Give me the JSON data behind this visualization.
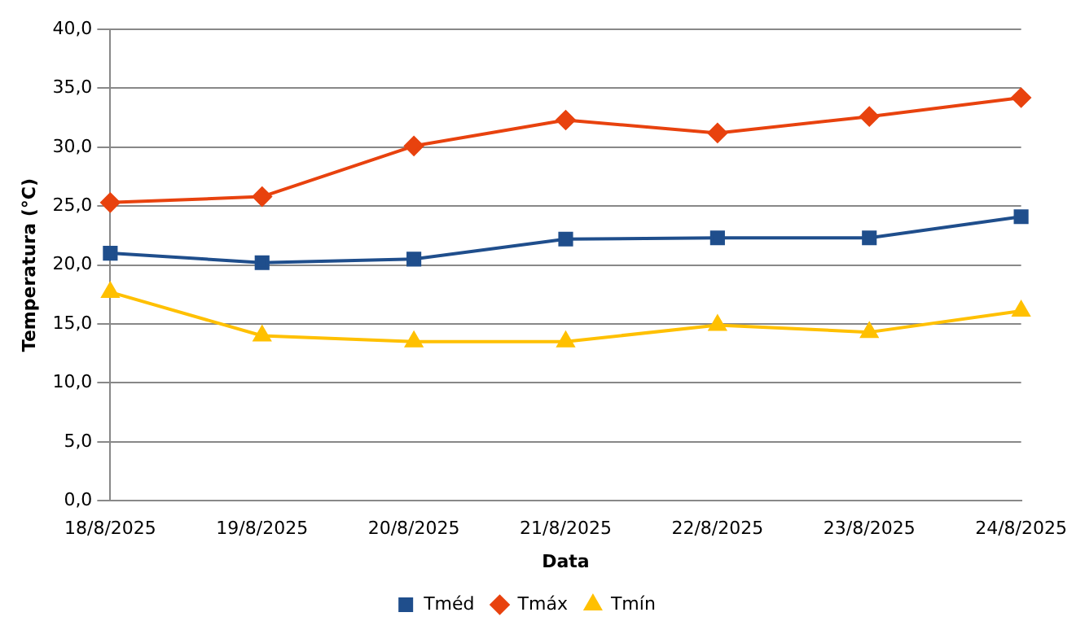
{
  "chart_data": {
    "type": "line",
    "xlabel": "Data",
    "ylabel": "Temperatura (°C)",
    "categories": [
      "18/8/2025",
      "19/8/2025",
      "20/8/2025",
      "21/8/2025",
      "22/8/2025",
      "23/8/2025",
      "24/8/2025"
    ],
    "series": [
      {
        "name": "Tméd",
        "color": "#1f4e8c",
        "marker": "square",
        "values": [
          21.0,
          20.2,
          20.5,
          22.2,
          22.3,
          22.3,
          24.1
        ]
      },
      {
        "name": "Tmáx",
        "color": "#e8420e",
        "marker": "diamond",
        "values": [
          25.3,
          25.8,
          30.1,
          32.3,
          31.2,
          32.6,
          34.2
        ]
      },
      {
        "name": "Tmín",
        "color": "#ffc000",
        "marker": "triangle",
        "values": [
          17.7,
          14.0,
          13.5,
          13.5,
          14.9,
          14.3,
          16.1
        ]
      }
    ],
    "ylim": [
      0,
      40
    ],
    "yticks": [
      {
        "value": 0,
        "label": "0,0"
      },
      {
        "value": 5,
        "label": "5,0"
      },
      {
        "value": 10,
        "label": "10,0"
      },
      {
        "value": 15,
        "label": "15,0"
      },
      {
        "value": 20,
        "label": "20,0"
      },
      {
        "value": 25,
        "label": "25,0"
      },
      {
        "value": 30,
        "label": "30,0"
      },
      {
        "value": 35,
        "label": "35,0"
      },
      {
        "value": 40,
        "label": "40,0"
      }
    ],
    "grid": "y",
    "legend": "bottom"
  }
}
